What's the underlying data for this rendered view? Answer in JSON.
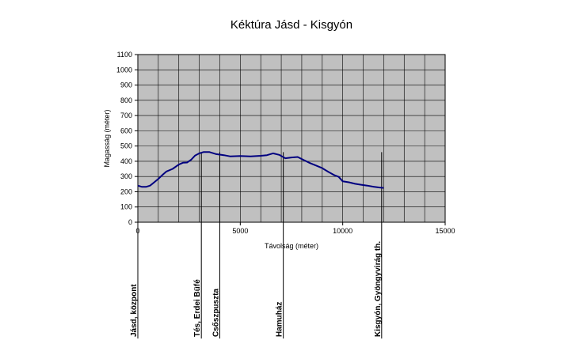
{
  "chart_data": {
    "type": "line",
    "title": "Kéktúra Jásd - Kisgyón",
    "xlabel": "Távolság (méter)",
    "ylabel": "Magasság (méter)",
    "xlim": [
      0,
      15000
    ],
    "ylim": [
      0,
      1100
    ],
    "x_ticks": [
      0,
      5000,
      10000,
      15000
    ],
    "y_ticks": [
      0,
      100,
      200,
      300,
      400,
      500,
      600,
      700,
      800,
      900,
      1000,
      1100
    ],
    "grid": true,
    "plot_background": "#c0c0c0",
    "series": [
      {
        "color": "#000080",
        "points": [
          [
            0,
            240
          ],
          [
            200,
            232
          ],
          [
            400,
            232
          ],
          [
            600,
            240
          ],
          [
            800,
            262
          ],
          [
            1000,
            285
          ],
          [
            1200,
            310
          ],
          [
            1400,
            333
          ],
          [
            1700,
            350
          ],
          [
            2000,
            378
          ],
          [
            2200,
            390
          ],
          [
            2400,
            392
          ],
          [
            2600,
            410
          ],
          [
            2800,
            438
          ],
          [
            3000,
            452
          ],
          [
            3200,
            460
          ],
          [
            3500,
            460
          ],
          [
            3800,
            448
          ],
          [
            4200,
            440
          ],
          [
            4500,
            432
          ],
          [
            5000,
            435
          ],
          [
            5500,
            432
          ],
          [
            6000,
            436
          ],
          [
            6300,
            440
          ],
          [
            6600,
            452
          ],
          [
            6900,
            442
          ],
          [
            7200,
            420
          ],
          [
            7500,
            425
          ],
          [
            7800,
            428
          ],
          [
            8100,
            408
          ],
          [
            8400,
            388
          ],
          [
            8700,
            372
          ],
          [
            9000,
            355
          ],
          [
            9300,
            330
          ],
          [
            9600,
            308
          ],
          [
            9800,
            298
          ],
          [
            10000,
            268
          ],
          [
            10300,
            262
          ],
          [
            10600,
            252
          ],
          [
            10900,
            246
          ],
          [
            11200,
            240
          ],
          [
            11500,
            233
          ],
          [
            11800,
            228
          ],
          [
            12000,
            225
          ]
        ]
      }
    ],
    "waypoints": [
      {
        "label": "Jásd, központ",
        "x": 0
      },
      {
        "label": "Tés, Erdei Büfé",
        "x": 3100
      },
      {
        "label": "Csőszpuszta",
        "x": 4000
      },
      {
        "label": "Hamuház",
        "x": 7100
      },
      {
        "label": "Kisgyón, Gyöngyvirág th.",
        "x": 11900
      }
    ]
  }
}
